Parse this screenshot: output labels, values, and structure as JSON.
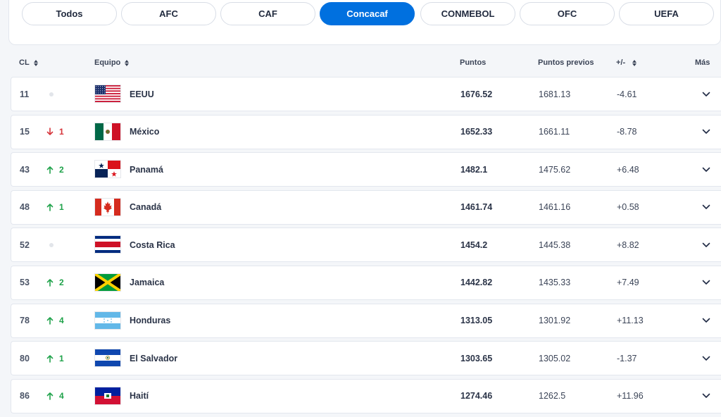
{
  "tabs": [
    {
      "label": "Todos",
      "active": false
    },
    {
      "label": "AFC",
      "active": false
    },
    {
      "label": "CAF",
      "active": false
    },
    {
      "label": "Concacaf",
      "active": true
    },
    {
      "label": "CONMEBOL",
      "active": false
    },
    {
      "label": "OFC",
      "active": false
    },
    {
      "label": "UEFA",
      "active": false
    }
  ],
  "columns": {
    "rank": "CL",
    "team": "Equipo",
    "points": "Puntos",
    "previous": "Puntos previos",
    "diff": "+/-",
    "more": "Más"
  },
  "colors": {
    "accent": "#0070df",
    "up": "#1fa24a",
    "down": "#d6343a"
  },
  "rows": [
    {
      "rank": "11",
      "trend": "none",
      "change": "",
      "team": "EEUU",
      "flag": "usa-flag-icon",
      "points": "1676.52",
      "previous": "1681.13",
      "diff": "-4.61"
    },
    {
      "rank": "15",
      "trend": "down",
      "change": "1",
      "team": "México",
      "flag": "mexico-flag-icon",
      "points": "1652.33",
      "previous": "1661.11",
      "diff": "-8.78"
    },
    {
      "rank": "43",
      "trend": "up",
      "change": "2",
      "team": "Panamá",
      "flag": "panama-flag-icon",
      "points": "1482.1",
      "previous": "1475.62",
      "diff": "+6.48"
    },
    {
      "rank": "48",
      "trend": "up",
      "change": "1",
      "team": "Canadá",
      "flag": "canada-flag-icon",
      "points": "1461.74",
      "previous": "1461.16",
      "diff": "+0.58"
    },
    {
      "rank": "52",
      "trend": "none",
      "change": "",
      "team": "Costa Rica",
      "flag": "costa-rica-flag-icon",
      "points": "1454.2",
      "previous": "1445.38",
      "diff": "+8.82"
    },
    {
      "rank": "53",
      "trend": "up",
      "change": "2",
      "team": "Jamaica",
      "flag": "jamaica-flag-icon",
      "points": "1442.82",
      "previous": "1435.33",
      "diff": "+7.49"
    },
    {
      "rank": "78",
      "trend": "up",
      "change": "4",
      "team": "Honduras",
      "flag": "honduras-flag-icon",
      "points": "1313.05",
      "previous": "1301.92",
      "diff": "+11.13"
    },
    {
      "rank": "80",
      "trend": "up",
      "change": "1",
      "team": "El Salvador",
      "flag": "el-salvador-flag-icon",
      "points": "1303.65",
      "previous": "1305.02",
      "diff": "-1.37"
    },
    {
      "rank": "86",
      "trend": "up",
      "change": "4",
      "team": "Haití",
      "flag": "haiti-flag-icon",
      "points": "1274.46",
      "previous": "1262.5",
      "diff": "+11.96"
    }
  ]
}
